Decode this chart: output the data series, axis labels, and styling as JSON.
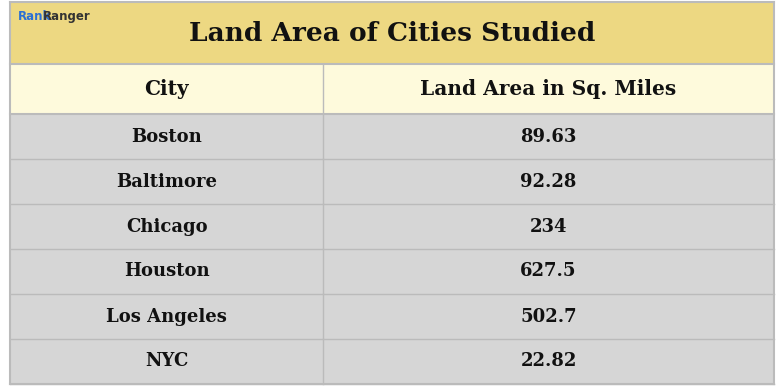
{
  "title": "Land Area of Cities Studied",
  "title_bg_color": "#EDD882",
  "header_bg_color": "#FEFADC",
  "row_bg_odd_color": "#D6D6D6",
  "row_bg_even_color": "#CBCBCB",
  "border_color": "#BBBBBB",
  "col_divider_color": "#BBBBBB",
  "text_color": "#111111",
  "header_col1": "City",
  "header_col2": "Land Area in Sq. Miles",
  "cities": [
    "Boston",
    "Baltimore",
    "Chicago",
    "Houston",
    "Los Angeles",
    "NYC"
  ],
  "areas": [
    "89.63",
    "92.28",
    "234",
    "627.5",
    "502.7",
    "22.82"
  ],
  "watermark_rank_color": "#2B6FD4",
  "watermark_ranger_color": "#333333",
  "fig_width": 7.84,
  "fig_height": 3.92,
  "dpi": 100
}
